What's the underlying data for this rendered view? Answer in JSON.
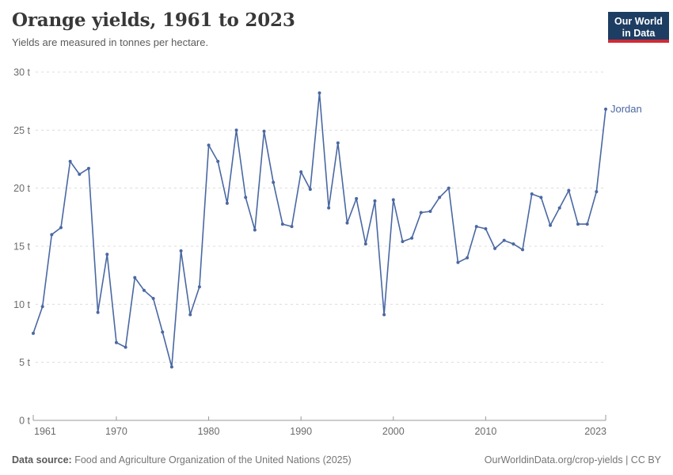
{
  "header": {
    "title": "Orange yields, 1961 to 2023",
    "subtitle": "Yields are measured in tonnes per hectare."
  },
  "logo": {
    "line1": "Our World",
    "line2": "in Data",
    "bg_color": "#1d3d63",
    "accent_color": "#cf2b36"
  },
  "footer": {
    "source_label": "Data source:",
    "source_text": " Food and Agriculture Organization of the United Nations (2025)",
    "credit": "OurWorldinData.org/crop-yields | CC BY"
  },
  "chart_data": {
    "type": "line",
    "title": "Orange yields, 1961 to 2023",
    "xlabel": "",
    "ylabel": "tonnes per hectare",
    "unit": "t",
    "grid": true,
    "legend_position": "end-of-line",
    "xlim": [
      1961,
      2023
    ],
    "ylim": [
      0,
      30
    ],
    "y_ticks": [
      0,
      5,
      10,
      15,
      20,
      25,
      30
    ],
    "y_tick_labels": [
      "0 t",
      "5 t",
      "10 t",
      "15 t",
      "20 t",
      "25 t",
      "30 t"
    ],
    "x_tick_years": [
      1961,
      1970,
      1980,
      1990,
      2000,
      2010,
      2023
    ],
    "x_tick_labels": [
      "1961",
      "1970",
      "1980",
      "1990",
      "2000",
      "2010",
      "2023"
    ],
    "x": [
      1961,
      1962,
      1963,
      1964,
      1965,
      1966,
      1967,
      1968,
      1969,
      1970,
      1971,
      1972,
      1973,
      1974,
      1975,
      1976,
      1977,
      1978,
      1979,
      1980,
      1981,
      1982,
      1983,
      1984,
      1985,
      1986,
      1987,
      1988,
      1989,
      1990,
      1991,
      1992,
      1993,
      1994,
      1995,
      1996,
      1997,
      1998,
      1999,
      2000,
      2001,
      2002,
      2003,
      2004,
      2005,
      2006,
      2007,
      2008,
      2009,
      2010,
      2011,
      2012,
      2013,
      2014,
      2015,
      2016,
      2017,
      2018,
      2019,
      2020,
      2021,
      2022,
      2023
    ],
    "series": [
      {
        "name": "Jordan",
        "color": "#4a68a2",
        "values": [
          7.5,
          9.8,
          16.0,
          16.6,
          22.3,
          21.2,
          21.7,
          9.3,
          14.3,
          6.7,
          6.3,
          12.3,
          11.2,
          10.5,
          7.6,
          4.6,
          14.6,
          9.1,
          11.5,
          23.7,
          22.3,
          18.7,
          25.0,
          19.2,
          16.4,
          24.9,
          20.5,
          16.9,
          16.7,
          21.4,
          19.9,
          28.2,
          18.3,
          23.9,
          17.0,
          19.1,
          15.2,
          18.9,
          9.1,
          19.0,
          15.4,
          15.7,
          17.9,
          18.0,
          19.2,
          20.0,
          13.6,
          14.0,
          16.7,
          16.5,
          14.8,
          15.5,
          15.2,
          14.7,
          19.5,
          19.2,
          16.8,
          18.3,
          19.8,
          16.9,
          16.9,
          19.7,
          26.8
        ]
      }
    ],
    "colors": {
      "gridline": "#dcdcdc",
      "axis": "#9a9a9a",
      "tick_label": "#6b6b6b"
    }
  }
}
